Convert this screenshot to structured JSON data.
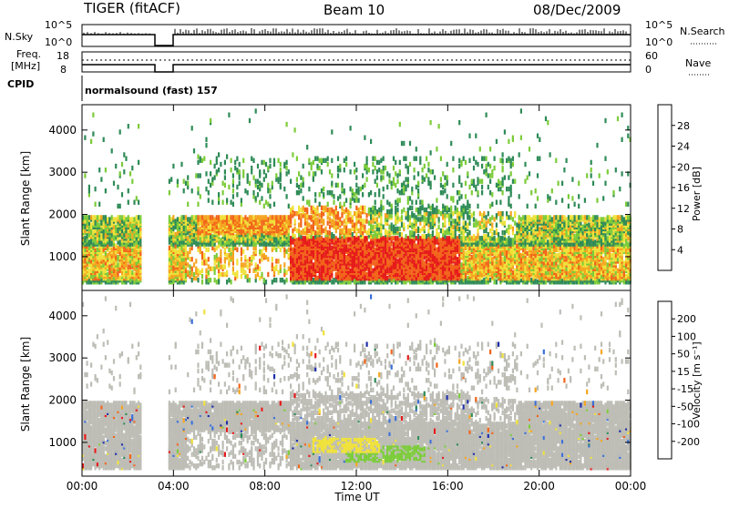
{
  "header": {
    "radar": "TIGER (fitACF)",
    "beam": "Beam 10",
    "date": "08/Dec/2009"
  },
  "top_panels": {
    "nsky_label": "N.Sky",
    "nsky_ticks": [
      "10^5",
      "10^0"
    ],
    "nsearch_label": "N.Search",
    "nsearch_ticks": [
      "10^5",
      "10^0"
    ],
    "freq_label_1": "Freq.",
    "freq_label_2": "[MHz]",
    "freq_ticks": [
      "18",
      "8"
    ],
    "nave_label": "Nave",
    "nave_ticks": [
      "60",
      "0"
    ],
    "cpid_label": "CPID",
    "cpid_value": "normalsound (fast) 157"
  },
  "axes": {
    "ylabel": "Slant Range [km]",
    "xlabel": "Time UT",
    "y_ticks": [
      "1000",
      "2000",
      "3000",
      "4000"
    ],
    "x_ticks": [
      "00:00",
      "04:00",
      "08:00",
      "12:00",
      "16:00",
      "20:00",
      "00:00"
    ]
  },
  "colorbars": {
    "power": {
      "label": "Power [dB]",
      "ticks": [
        "4",
        "8",
        "12",
        "16",
        "20",
        "24",
        "28"
      ],
      "colors": [
        "#1f1fe6",
        "#2a4fa8",
        "#2e8b57",
        "#7ccc3a",
        "#f0e23a",
        "#f5a51f",
        "#f2641a",
        "#e61a1a"
      ]
    },
    "velocity": {
      "label": "Velocity [m s⁻¹]",
      "ticks": [
        "200",
        "100",
        "50",
        "15",
        "-15",
        "-50",
        "-100",
        "-200"
      ],
      "colors": [
        "#1f2ea8",
        "#3a6fd8",
        "#2e8b57",
        "#7ccc3a",
        "#bdbdb6",
        "#f0e23a",
        "#f5a51f",
        "#f2641a",
        "#e61a1a"
      ]
    }
  },
  "chart_data": [
    {
      "type": "heatmap",
      "title": "Power",
      "xlabel": "Time UT",
      "ylabel": "Slant Range [km]",
      "xlim": [
        0,
        24
      ],
      "ylim": [
        200,
        4600
      ],
      "colorbar": {
        "label": "Power [dB]",
        "range": [
          0,
          32
        ]
      },
      "data_gaps_hours": [
        [
          2.6,
          3.7
        ]
      ],
      "features": [
        {
          "name": "near range band",
          "t_start": 0,
          "t_end": 24,
          "range_km": [
            300,
            1900
          ],
          "power_db": 18
        },
        {
          "name": "strong scatter",
          "t_start": 9.0,
          "t_end": 16.5,
          "range_km": [
            400,
            1400
          ],
          "power_db": 30
        },
        {
          "name": "upper band",
          "t_start": 5.0,
          "t_end": 12.5,
          "range_km": [
            1500,
            2100
          ],
          "power_db": 24
        }
      ]
    },
    {
      "type": "heatmap",
      "title": "Velocity",
      "xlabel": "Time UT",
      "ylabel": "Slant Range [km]",
      "xlim": [
        0,
        24
      ],
      "ylim": [
        200,
        4600
      ],
      "colorbar": {
        "label": "Velocity [m s⁻¹]",
        "range": [
          -200,
          200
        ]
      },
      "data_gaps_hours": [
        [
          2.6,
          3.7
        ]
      ],
      "features": [
        {
          "name": "ground scatter",
          "t_start": 0,
          "t_end": 24,
          "range_km": [
            300,
            1900
          ],
          "velocity": 0
        },
        {
          "name": "negative patch",
          "t_start": 10.0,
          "t_end": 13.0,
          "range_km": [
            700,
            1100
          ],
          "velocity": -50
        },
        {
          "name": "positive patch",
          "t_start": 11.5,
          "t_end": 15.0,
          "range_km": [
            500,
            900
          ],
          "velocity": 30
        }
      ]
    }
  ]
}
